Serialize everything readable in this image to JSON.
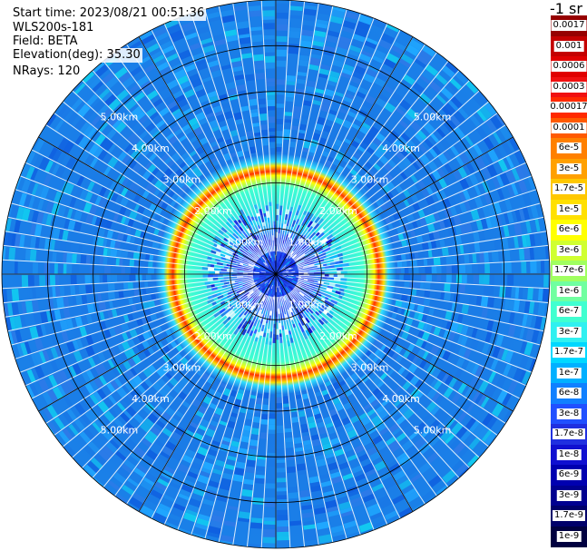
{
  "header": {
    "start_time": "Start time: 2023/08/21 00:51:36",
    "instrument": "WLS200s-181",
    "field": "Field: BETA",
    "elevation": "Elevation(deg): 35.30",
    "nrays": "NRays: 120"
  },
  "units_label": "-1 sr",
  "chart_data": {
    "type": "heatmap",
    "projection": "polar PPI",
    "field": "BETA",
    "n_rays": 120,
    "max_range_km": 6,
    "range_rings_km": [
      1,
      2,
      3,
      4,
      5,
      6
    ],
    "ring_labels": [
      "1.00km",
      "2.00km",
      "3.00km",
      "4.00km",
      "5.00km"
    ],
    "spokes": 12,
    "feature": {
      "description_key": "aerosol ring",
      "inner_edge_km": 2.0,
      "peak_km": 2.05,
      "outer_edge_km": 2.15
    },
    "colorbar": {
      "labels": [
        "0.0017",
        "0.001",
        "0.0006",
        "0.0003",
        "0.00017",
        "0.0001",
        "6e-5",
        "3e-5",
        "1.7e-5",
        "1e-5",
        "6e-6",
        "3e-6",
        "1.7e-6",
        "1e-6",
        "6e-7",
        "3e-7",
        "1.7e-7",
        "1e-7",
        "6e-8",
        "3e-8",
        "1.7e-8",
        "1e-8",
        "6e-9",
        "3e-9",
        "1.7e-9",
        "1e-9"
      ],
      "colors": [
        "#960000",
        "#c40000",
        "#e00000",
        "#f01010",
        "#ff2a00",
        "#ff5a00",
        "#ff8000",
        "#ffa000",
        "#ffc800",
        "#ffe000",
        "#ffff00",
        "#d0ff30",
        "#a0ff60",
        "#70ffa0",
        "#40ffd0",
        "#30f0f0",
        "#00d8ff",
        "#00b0ff",
        "#1080ff",
        "#2050ff",
        "#2030e0",
        "#1010d0",
        "#0000b0",
        "#000090",
        "#00006a",
        "#000040"
      ]
    }
  },
  "colors": {
    "background": "#ffffff",
    "background_noise": "#1a78e6",
    "inner_noise": "#1b3fe0",
    "ring_peak": "#ff3000",
    "grid": "#000000"
  }
}
